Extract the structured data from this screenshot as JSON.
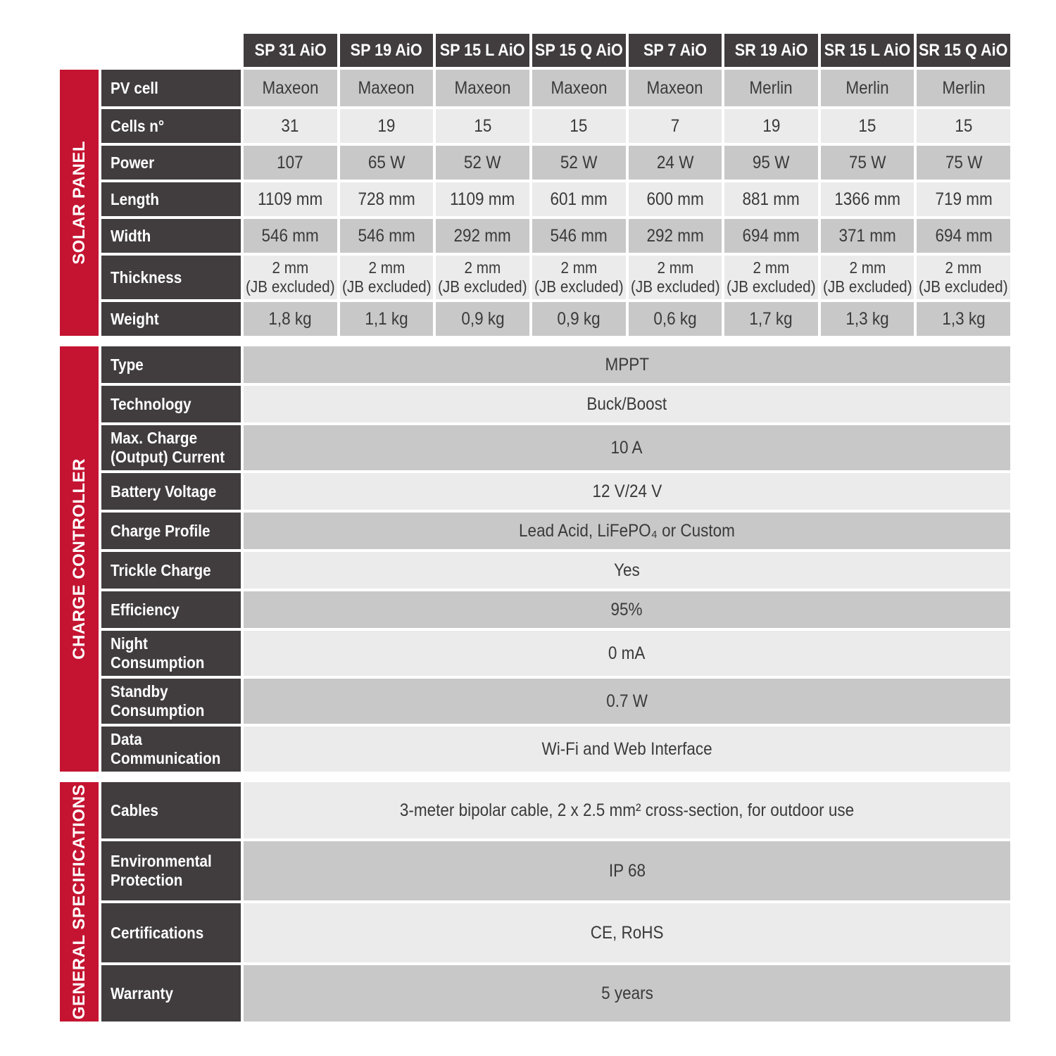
{
  "table": {
    "products": [
      "SP 31 AiO",
      "SP 19 AiO",
      "SP 15 L AiO",
      "SP 15 Q AiO",
      "SP 7 AiO",
      "SR 19 AiO",
      "SR 15 L AiO",
      "SR 15 Q AiO"
    ],
    "colors": {
      "accent_red": "#c41431",
      "header_dark": "#413d3e",
      "row_medium": "#c8c8c8",
      "row_light": "#ebebeb"
    },
    "sections": [
      {
        "label": "SOLAR PANEL",
        "rows": [
          {
            "label": "PV cell",
            "cells": [
              "Maxeon",
              "Maxeon",
              "Maxeon",
              "Maxeon",
              "Maxeon",
              "Merlin",
              "Merlin",
              "Merlin"
            ]
          },
          {
            "label": "Cells n°",
            "cells": [
              "31",
              "19",
              "15",
              "15",
              "7",
              "19",
              "15",
              "15"
            ]
          },
          {
            "label": "Power",
            "cells": [
              "107",
              "65 W",
              "52 W",
              "52 W",
              "24 W",
              "95 W",
              "75 W",
              "75 W"
            ]
          },
          {
            "label": "Length",
            "cells": [
              "1109 mm",
              "728 mm",
              "1109 mm",
              "601 mm",
              "600 mm",
              "881 mm",
              "1366 mm",
              "719 mm"
            ]
          },
          {
            "label": "Width",
            "cells": [
              "546 mm",
              "546 mm",
              "292 mm",
              "546 mm",
              "292 mm",
              "694 mm",
              "371 mm",
              "694 mm"
            ]
          },
          {
            "label": "Thickness",
            "cells": [
              "2 mm\n(JB excluded)",
              "2 mm\n(JB excluded)",
              "2 mm\n(JB excluded)",
              "2 mm\n(JB excluded)",
              "2 mm\n(JB excluded)",
              "2 mm\n(JB excluded)",
              "2 mm\n(JB excluded)",
              "2 mm\n(JB excluded)"
            ]
          },
          {
            "label": "Weight",
            "cells": [
              "1,8 kg",
              "1,1 kg",
              "0,9 kg",
              "0,9 kg",
              "0,6 kg",
              "1,7 kg",
              "1,3 kg",
              "1,3 kg"
            ]
          }
        ]
      },
      {
        "label": "CHARGE CONTROLLER",
        "rows": [
          {
            "label": "Type",
            "value": "MPPT"
          },
          {
            "label": "Technology",
            "value": "Buck/Boost"
          },
          {
            "label": "Max. Charge\n(Output) Current",
            "value": "10 A"
          },
          {
            "label": "Battery Voltage",
            "value": "12 V/24 V"
          },
          {
            "label": "Charge Profile",
            "value": "Lead Acid, LiFePO₄ or Custom"
          },
          {
            "label": "Trickle Charge",
            "value": "Yes"
          },
          {
            "label": "Efficiency",
            "value": "95%"
          },
          {
            "label": "Night\nConsumption",
            "value": "0 mA"
          },
          {
            "label": "Standby\nConsumption",
            "value": "0.7 W"
          },
          {
            "label": "Data\nCommunication",
            "value": "Wi-Fi and Web Interface"
          }
        ]
      },
      {
        "label": "GENERAL SPECIFICATIONS",
        "rows": [
          {
            "label": "Cables",
            "value": "3-meter bipolar cable, 2 x 2.5 mm² cross-section, for outdoor use"
          },
          {
            "label": "Environmental\nProtection",
            "value": "IP 68"
          },
          {
            "label": "Certifications",
            "value": "CE, RoHS"
          },
          {
            "label": "Warranty",
            "value": "5 years"
          }
        ]
      }
    ]
  }
}
